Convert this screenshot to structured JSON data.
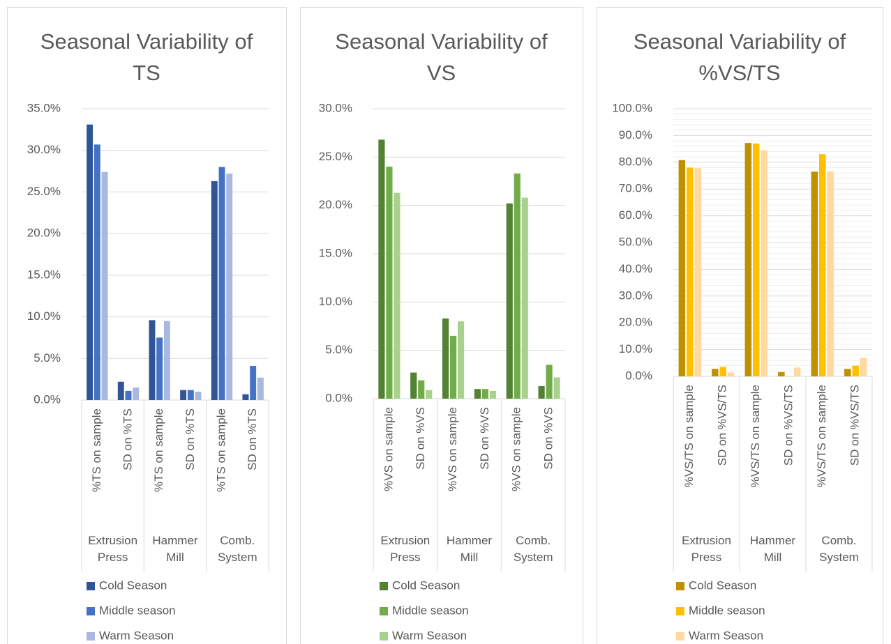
{
  "chart_data": [
    {
      "type": "bar",
      "title": "Seasonal Variability of TS",
      "categories": [
        "%TS on sample",
        "SD on %TS",
        "%TS on sample",
        "SD on %TS",
        "%TS on sample",
        "SD on %TS"
      ],
      "groups": [
        "Extrusion Press",
        "Hammer Mill",
        "Comb. System"
      ],
      "series": [
        {
          "name": "Cold Season",
          "color": "#2f5597",
          "values": [
            33.1,
            2.2,
            9.6,
            1.2,
            26.3,
            0.7
          ]
        },
        {
          "name": "Middle season",
          "color": "#4472c4",
          "values": [
            30.7,
            1.1,
            7.5,
            1.2,
            28.0,
            4.1
          ]
        },
        {
          "name": "Warm Season",
          "color": "#a9b8e0",
          "values": [
            27.4,
            1.5,
            9.5,
            1.0,
            27.2,
            2.7
          ]
        }
      ],
      "ylim": [
        0,
        35
      ],
      "yticks": [
        {
          "value": 0,
          "label": "0.0%"
        },
        {
          "value": 5,
          "label": "5.0%"
        },
        {
          "value": 10,
          "label": "10.0%"
        },
        {
          "value": 15,
          "label": "15.0%"
        },
        {
          "value": 20,
          "label": "20.0%"
        },
        {
          "value": 25,
          "label": "25.0%"
        },
        {
          "value": 30,
          "label": "30.0%"
        },
        {
          "value": 35,
          "label": "35.0%"
        }
      ],
      "grid": true,
      "legend": "bottom"
    },
    {
      "type": "bar",
      "title": "Seasonal Variability of VS",
      "categories": [
        "%VS on sample",
        "SD on %VS",
        "%VS on sample",
        "SD on %VS",
        "%VS on sample",
        "SD on %VS"
      ],
      "groups": [
        "Extrusion Press",
        "Hammer Mill",
        "Comb. System"
      ],
      "series": [
        {
          "name": "Cold Season",
          "color": "#548235",
          "values": [
            26.8,
            2.7,
            8.3,
            1.0,
            20.2,
            1.3
          ]
        },
        {
          "name": "Middle season",
          "color": "#70ad47",
          "values": [
            24.0,
            1.9,
            6.5,
            1.0,
            23.3,
            3.5
          ]
        },
        {
          "name": "Warm Season",
          "color": "#a9d18e",
          "values": [
            21.3,
            0.9,
            8.0,
            0.8,
            20.8,
            2.2
          ]
        }
      ],
      "ylim": [
        0,
        30
      ],
      "yticks": [
        {
          "value": 0,
          "label": "0.0%"
        },
        {
          "value": 5,
          "label": "5.0%"
        },
        {
          "value": 10,
          "label": "10.0%"
        },
        {
          "value": 15,
          "label": "15.0%"
        },
        {
          "value": 20,
          "label": "20.0%"
        },
        {
          "value": 25,
          "label": "25.0%"
        },
        {
          "value": 30,
          "label": "30.0%"
        }
      ],
      "grid": true,
      "legend": "bottom"
    },
    {
      "type": "bar",
      "title": "Seasonal Variability of %VS/TS",
      "categories": [
        "%VS/TS on sample",
        "SD on %VS/TS",
        "%VS/TS on sample",
        "SD on %VS/TS",
        "%VS/TS on sample",
        "SD on %VS/TS"
      ],
      "groups": [
        "Extrusion Press",
        "Hammer Mill",
        "Comb. System"
      ],
      "series": [
        {
          "name": "Cold Season",
          "color": "#bf9000",
          "values": [
            80.8,
            2.8,
            87.2,
            1.6,
            76.5,
            2.8
          ]
        },
        {
          "name": "Middle season",
          "color": "#ffc000",
          "values": [
            78.0,
            3.5,
            87.0,
            0,
            83.0,
            4.0
          ]
        },
        {
          "name": "Warm Season",
          "color": "#ffd9a0",
          "values": [
            77.8,
            1.4,
            84.5,
            3.3,
            76.6,
            7.0
          ]
        }
      ],
      "ylim": [
        0,
        100
      ],
      "yticks": [
        {
          "value": 0,
          "label": "0.0%"
        },
        {
          "value": 10,
          "label": "10.0%"
        },
        {
          "value": 20,
          "label": "20.0%"
        },
        {
          "value": 30,
          "label": "30.0%"
        },
        {
          "value": 40,
          "label": "40.0%"
        },
        {
          "value": 50,
          "label": "50.0%"
        },
        {
          "value": 60,
          "label": "60.0%"
        },
        {
          "value": 70,
          "label": "70.0%"
        },
        {
          "value": 80,
          "label": "80.0%"
        },
        {
          "value": 90,
          "label": "90.0%"
        },
        {
          "value": 100,
          "label": "100.0%"
        }
      ],
      "grid": true,
      "minor_grid": true,
      "legend": "bottom"
    }
  ]
}
